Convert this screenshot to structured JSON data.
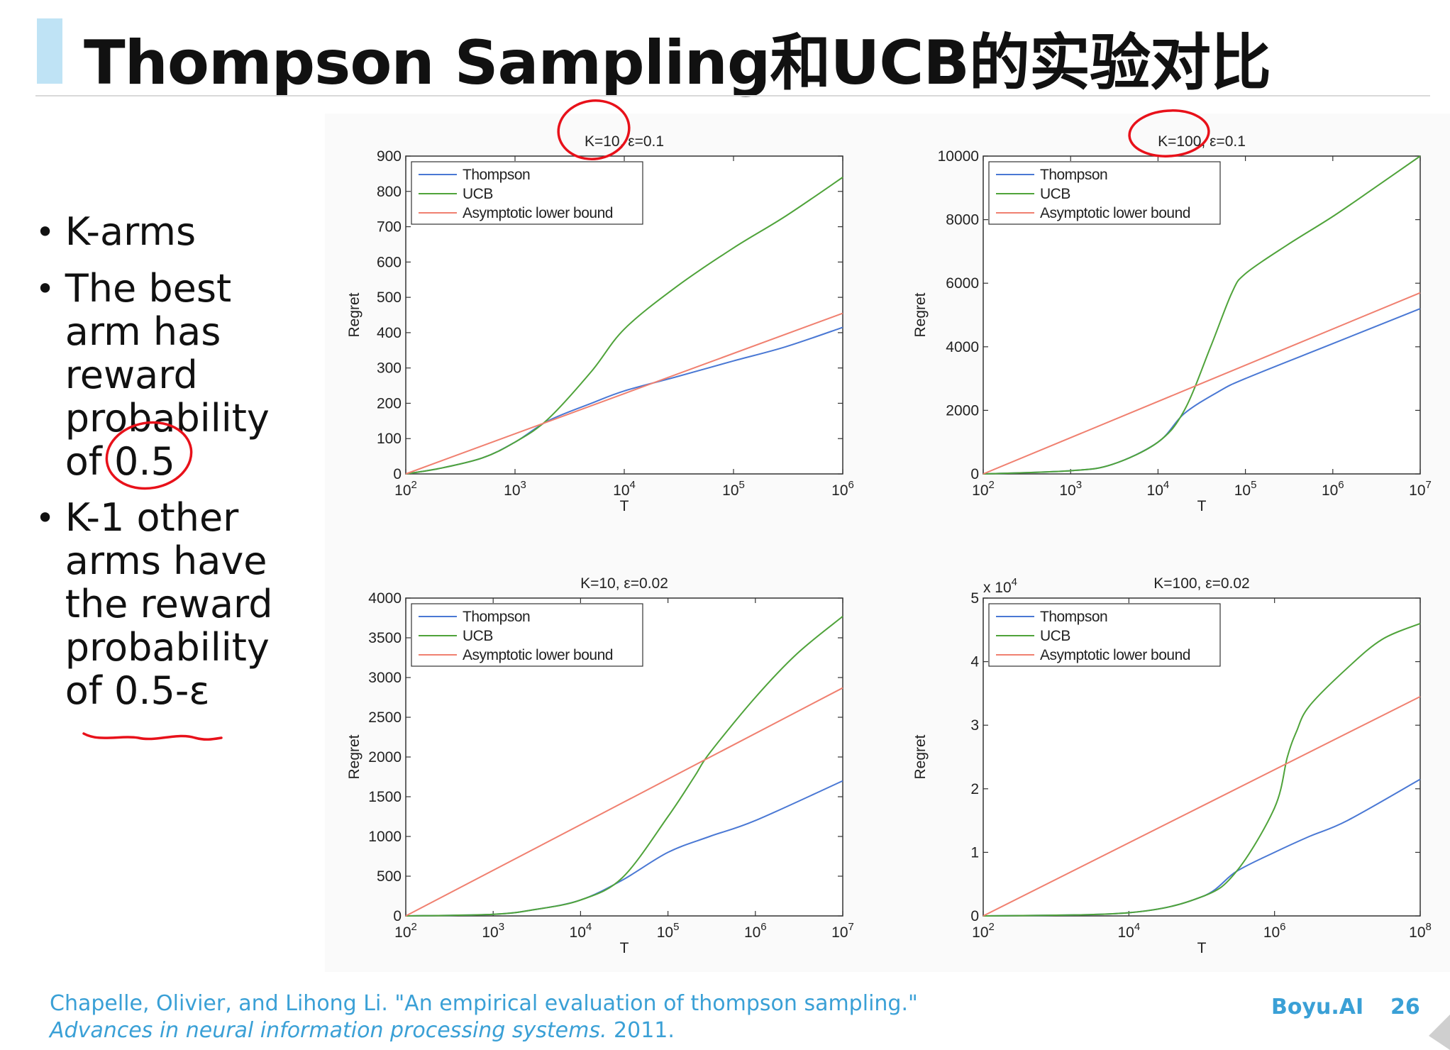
{
  "slide": {
    "title": "Thompson Sampling和UCB的实验对比",
    "bullets": [
      "K-arms",
      "The best arm has reward probability of 0.5",
      "K-1 other arms have the reward probability of 0.5-ε"
    ],
    "citation_plain": "Chapelle, Olivier, and Lihong Li. \"An empirical evaluation of thompson sampling.\"",
    "citation_italic": "Advances in neural information processing systems.",
    "citation_year": "2011.",
    "brand": "Boyu.AI",
    "page_number": "26"
  },
  "colors": {
    "thompson": "#4a78d4",
    "ucb": "#4fa33a",
    "lower_bound": "#f08070",
    "annotation": "#e8111a",
    "accent": "#3aa0d6"
  },
  "chart_data": [
    {
      "type": "line",
      "title": "K=10, ε=0.1",
      "xlabel": "T",
      "ylabel": "Regret",
      "x_scale": "log",
      "xlim": [
        100,
        1000000
      ],
      "ylim": [
        0,
        900
      ],
      "x_ticks": [
        "10^2",
        "10^3",
        "10^4",
        "10^5",
        "10^6"
      ],
      "y_ticks": [
        "0",
        "100",
        "200",
        "300",
        "400",
        "500",
        "600",
        "700",
        "800",
        "900"
      ],
      "y_multiplier": "",
      "legend": [
        "Thompson",
        "UCB",
        "Asymptotic lower bound"
      ],
      "legend_position": "top-left",
      "series": [
        {
          "name": "Thompson",
          "x": [
            100,
            200,
            500,
            1000,
            2000,
            5000,
            10000,
            30000,
            100000,
            300000,
            1000000
          ],
          "y": [
            0,
            15,
            45,
            90,
            150,
            200,
            235,
            275,
            320,
            360,
            415
          ]
        },
        {
          "name": "UCB",
          "x": [
            100,
            200,
            500,
            1000,
            2000,
            5000,
            10000,
            30000,
            100000,
            300000,
            1000000
          ],
          "y": [
            0,
            15,
            45,
            90,
            155,
            290,
            410,
            530,
            640,
            730,
            840
          ]
        },
        {
          "name": "Asymptotic lower bound",
          "x": [
            100,
            1000000
          ],
          "y": [
            0,
            455
          ]
        }
      ]
    },
    {
      "type": "line",
      "title": "K=100, ε=0.1",
      "xlabel": "T",
      "ylabel": "Regret",
      "x_scale": "log",
      "xlim": [
        100,
        10000000
      ],
      "ylim": [
        0,
        10000
      ],
      "x_ticks": [
        "10^2",
        "10^3",
        "10^4",
        "10^5",
        "10^6",
        "10^7"
      ],
      "y_ticks": [
        "0",
        "2000",
        "4000",
        "6000",
        "8000",
        "10000"
      ],
      "y_multiplier": "",
      "legend": [
        "Thompson",
        "UCB",
        "Asymptotic lower bound"
      ],
      "legend_position": "top-left",
      "series": [
        {
          "name": "Thompson",
          "x": [
            100,
            1000,
            3000,
            10000,
            20000,
            50000,
            100000,
            1000000,
            10000000
          ],
          "y": [
            0,
            100,
            300,
            1000,
            1900,
            2600,
            3000,
            4100,
            5200
          ]
        },
        {
          "name": "UCB",
          "x": [
            100,
            1000,
            3000,
            10000,
            20000,
            40000,
            70000,
            100000,
            300000,
            1000000,
            3000000,
            10000000
          ],
          "y": [
            0,
            100,
            300,
            1000,
            2000,
            4000,
            5700,
            6300,
            7200,
            8100,
            9000,
            10000
          ]
        },
        {
          "name": "Asymptotic lower bound",
          "x": [
            100,
            10000000
          ],
          "y": [
            0,
            5700
          ]
        }
      ]
    },
    {
      "type": "line",
      "title": "K=10, ε=0.02",
      "xlabel": "T",
      "ylabel": "Regret",
      "x_scale": "log",
      "xlim": [
        100,
        10000000
      ],
      "ylim": [
        0,
        4000
      ],
      "x_ticks": [
        "10^2",
        "10^3",
        "10^4",
        "10^5",
        "10^6",
        "10^7"
      ],
      "y_ticks": [
        "0",
        "500",
        "1000",
        "1500",
        "2000",
        "2500",
        "3000",
        "3500",
        "4000"
      ],
      "y_multiplier": "",
      "legend": [
        "Thompson",
        "UCB",
        "Asymptotic lower bound"
      ],
      "legend_position": "top-left",
      "series": [
        {
          "name": "Thompson",
          "x": [
            100,
            1000,
            3000,
            10000,
            30000,
            100000,
            300000,
            1000000,
            10000000
          ],
          "y": [
            0,
            20,
            80,
            200,
            450,
            800,
            1000,
            1200,
            1700
          ]
        },
        {
          "name": "UCB",
          "x": [
            100,
            1000,
            3000,
            10000,
            30000,
            100000,
            200000,
            300000,
            1000000,
            3000000,
            10000000
          ],
          "y": [
            0,
            20,
            80,
            200,
            480,
            1250,
            1750,
            2050,
            2750,
            3300,
            3770
          ]
        },
        {
          "name": "Asymptotic lower bound",
          "x": [
            100,
            10000000
          ],
          "y": [
            0,
            2870
          ]
        }
      ]
    },
    {
      "type": "line",
      "title": "K=100, ε=0.02",
      "xlabel": "T",
      "ylabel": "Regret",
      "x_scale": "log",
      "xlim": [
        100,
        100000000
      ],
      "ylim": [
        0,
        5
      ],
      "x_ticks": [
        "10^2",
        "10^4",
        "10^6",
        "10^8"
      ],
      "y_ticks": [
        "0",
        "1",
        "2",
        "3",
        "4",
        "5"
      ],
      "y_multiplier": "x 10^4",
      "legend": [
        "Thompson",
        "UCB",
        "Asymptotic lower bound"
      ],
      "legend_position": "top-left",
      "series": [
        {
          "name": "Thompson",
          "x": [
            100,
            10000,
            100000,
            300000,
            1000000,
            3000000,
            10000000,
            100000000
          ],
          "y": [
            0,
            0.05,
            0.3,
            0.7,
            1.0,
            1.25,
            1.5,
            2.15
          ]
        },
        {
          "name": "UCB",
          "x": [
            100,
            10000,
            100000,
            300000,
            1000000,
            1500000,
            2000000,
            3000000,
            10000000,
            30000000,
            100000000
          ],
          "y": [
            0,
            0.05,
            0.3,
            0.7,
            1.7,
            2.5,
            2.9,
            3.3,
            3.9,
            4.35,
            4.6
          ]
        },
        {
          "name": "Asymptotic lower bound",
          "x": [
            100,
            100000000
          ],
          "y": [
            0,
            3.45
          ]
        }
      ]
    }
  ]
}
